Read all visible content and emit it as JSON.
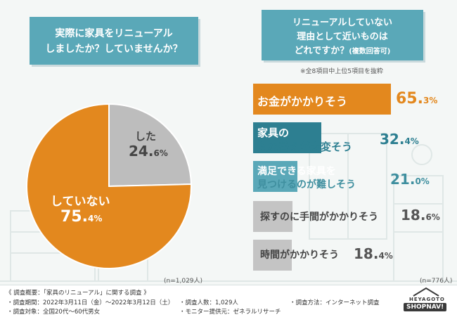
{
  "colors": {
    "orange": "#e3881e",
    "gray": "#bdbdbd",
    "teal_dark": "#2d7f91",
    "teal_light": "#5aa8b8",
    "gray_bar": "#c4c4c4"
  },
  "question1": {
    "line1": "実際に家具をリニューアル",
    "line2": "しましたか？していませんか？"
  },
  "question2": {
    "line1": "リニューアルしていない",
    "line2": "理由として近いものは",
    "line3_main": "どれですか？",
    "line3_sub": "(複数回答可)"
  },
  "note_top": "※全8項目中上位5項目を抜粋",
  "pie_n": "(n=1,029人)",
  "bar_n": "(n=776人)",
  "chart_data": [
    {
      "type": "pie",
      "title": "実際に家具をリニューアルしましたか？していませんか？",
      "slices": [
        {
          "label": "した",
          "value": 24.6,
          "pct_main": "24.",
          "pct_decimal": "6",
          "pct_unit": "%"
        },
        {
          "label": "していない",
          "value": 75.4,
          "pct_main": "75.",
          "pct_decimal": "4",
          "pct_unit": "%"
        }
      ]
    },
    {
      "type": "bar",
      "title": "リニューアルしていない理由として近いものはどれですか？(複数回答可)",
      "bars": [
        {
          "line1": "お金がかかりそう",
          "line2": "",
          "value": 65.3,
          "pct_main": "65.",
          "pct_decimal": "3",
          "pct_unit": "%"
        },
        {
          "line1": "家具の",
          "line2": "入れ替えが大変そう",
          "value": 32.4,
          "pct_main": "32.",
          "pct_decimal": "4",
          "pct_unit": "%"
        },
        {
          "line1": "満足できる家具を",
          "line2": "見つけるのが難しそう",
          "value": 21.0,
          "pct_main": "21.",
          "pct_decimal": "0",
          "pct_unit": "%"
        },
        {
          "line1": "探すのに手間がかかりそう",
          "line2": "",
          "value": 18.6,
          "pct_main": "18.",
          "pct_decimal": "6",
          "pct_unit": "%"
        },
        {
          "line1": "時間がかかりそう",
          "line2": "",
          "value": 18.4,
          "pct_main": "18.",
          "pct_decimal": "4",
          "pct_unit": "%"
        }
      ]
    }
  ],
  "footer": {
    "title": "《 調査概要：「家具のリニューアル」に関する調査 》",
    "period": "調査期間：2022年3月11日（金）～2022年3月12日（土）",
    "target": "調査対象：全国20代～60代男女",
    "count": "調査人数：1,029人",
    "provider": "モニター提供元：ゼネラルリサーチ",
    "method": "調査方法：インターネット調査"
  },
  "logo": {
    "top": "HEYAGOTO",
    "main": "SHOPNAV!"
  }
}
